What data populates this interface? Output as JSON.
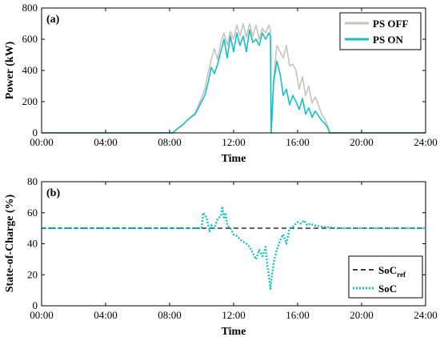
{
  "chart_data": [
    {
      "type": "line",
      "panel_label": "(a)",
      "xlabel": "Time",
      "ylabel": "Power (kW)",
      "xlim": [
        0,
        24
      ],
      "ylim": [
        0,
        800
      ],
      "x_ticks": [
        "00:00",
        "04:00",
        "08:00",
        "12:00",
        "16:00",
        "20:00",
        "24:00"
      ],
      "y_ticks": [
        "0",
        "200",
        "400",
        "600",
        "800"
      ],
      "legend_position": "top-right",
      "grid": false,
      "colors": {
        "PS OFF": "#c8c3bc",
        "PS ON": "#19bfc0"
      },
      "series": [
        {
          "name": "PS OFF",
          "x": [
            0,
            8.2,
            8.4,
            8.8,
            9.2,
            9.6,
            9.9,
            10.2,
            10.4,
            10.6,
            10.8,
            11.0,
            11.2,
            11.4,
            11.6,
            11.8,
            12.0,
            12.2,
            12.4,
            12.6,
            12.8,
            13.0,
            13.2,
            13.4,
            13.6,
            13.8,
            14.0,
            14.2,
            14.3,
            14.35,
            14.5,
            14.7,
            14.9,
            15.1,
            15.3,
            15.5,
            15.7,
            15.9,
            16.1,
            16.3,
            16.5,
            16.7,
            16.9,
            17.1,
            17.3,
            17.5,
            17.7,
            17.9,
            18.0,
            24
          ],
          "y": [
            0,
            0,
            20,
            50,
            90,
            130,
            200,
            280,
            380,
            470,
            540,
            470,
            580,
            640,
            560,
            650,
            600,
            690,
            620,
            700,
            610,
            700,
            620,
            690,
            600,
            670,
            640,
            690,
            660,
            0,
            350,
            560,
            520,
            480,
            560,
            430,
            440,
            400,
            280,
            360,
            240,
            300,
            190,
            230,
            180,
            120,
            90,
            40,
            0,
            0
          ]
        },
        {
          "name": "PS ON",
          "x": [
            0,
            8.2,
            8.4,
            8.8,
            9.2,
            9.6,
            9.9,
            10.2,
            10.4,
            10.6,
            10.8,
            11.0,
            11.2,
            11.4,
            11.6,
            11.8,
            12.0,
            12.2,
            12.4,
            12.6,
            12.8,
            13.0,
            13.2,
            13.4,
            13.6,
            13.8,
            14.0,
            14.2,
            14.3,
            14.35,
            14.5,
            14.7,
            14.9,
            15.1,
            15.3,
            15.5,
            15.7,
            15.9,
            16.1,
            16.3,
            16.5,
            16.7,
            16.9,
            17.1,
            17.3,
            17.5,
            17.7,
            17.9,
            18.0,
            24
          ],
          "y": [
            0,
            0,
            20,
            50,
            90,
            120,
            180,
            240,
            320,
            420,
            380,
            440,
            520,
            600,
            480,
            620,
            520,
            640,
            560,
            620,
            520,
            660,
            580,
            600,
            560,
            640,
            600,
            640,
            620,
            0,
            320,
            460,
            380,
            240,
            280,
            180,
            240,
            200,
            150,
            220,
            120,
            160,
            100,
            140,
            110,
            80,
            60,
            30,
            0,
            0
          ]
        }
      ]
    },
    {
      "type": "line",
      "panel_label": "(b)",
      "xlabel": "Time",
      "ylabel": "State-of-Charge (%)",
      "xlim": [
        0,
        24
      ],
      "ylim": [
        0,
        80
      ],
      "x_ticks": [
        "00:00",
        "04:00",
        "08:00",
        "12:00",
        "16:00",
        "20:00",
        "24:00"
      ],
      "y_ticks": [
        "0",
        "20",
        "40",
        "60",
        "80"
      ],
      "legend_position": "bottom-right",
      "grid": false,
      "colors": {
        "SoC_ref": "#404040",
        "SoC": "#19bfc0"
      },
      "series": [
        {
          "name": "SoC",
          "name_base": "SoC",
          "name_sub": "ref",
          "style": "dashed",
          "x": [
            0,
            24
          ],
          "y": [
            50,
            50
          ]
        },
        {
          "name": "SoC",
          "style": "dotted",
          "x": [
            0,
            10.0,
            10.1,
            10.3,
            10.5,
            10.6,
            10.8,
            11.0,
            11.2,
            11.3,
            11.4,
            11.5,
            11.6,
            11.8,
            12.0,
            12.2,
            12.5,
            12.8,
            13.0,
            13.2,
            13.4,
            13.6,
            13.8,
            14.0,
            14.1,
            14.2,
            14.3,
            14.4,
            14.5,
            14.7,
            14.9,
            15.1,
            15.3,
            15.5,
            15.7,
            16.0,
            16.2,
            16.4,
            16.6,
            16.8,
            17.0,
            17.5,
            18.0,
            18.5,
            24
          ],
          "y": [
            50,
            50,
            60,
            57,
            48,
            52,
            50,
            56,
            58,
            64,
            56,
            60,
            52,
            50,
            46,
            45,
            42,
            40,
            38,
            34,
            30,
            36,
            32,
            38,
            26,
            20,
            11,
            20,
            28,
            36,
            42,
            46,
            40,
            50,
            51,
            54,
            53,
            55,
            52,
            53,
            52,
            51,
            50.5,
            50,
            50
          ]
        }
      ]
    }
  ]
}
